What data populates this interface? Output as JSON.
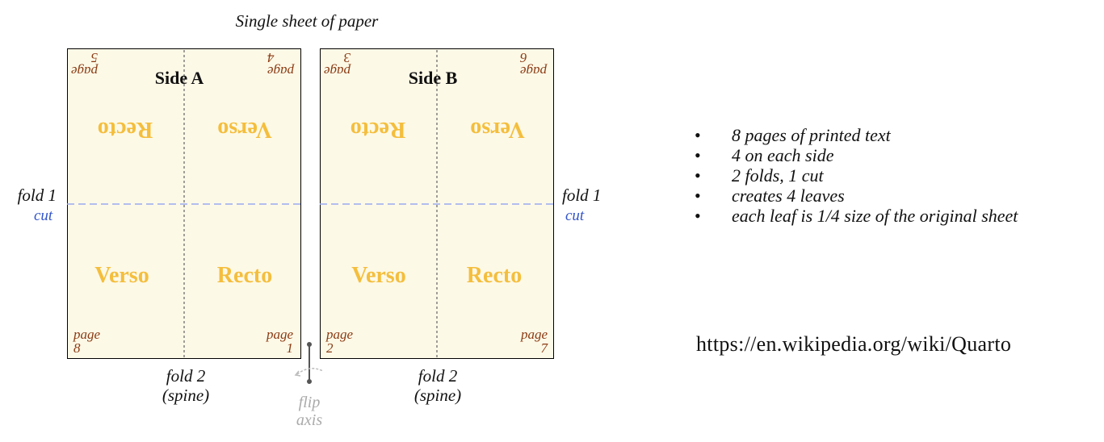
{
  "caption": "Single sheet of paper",
  "sides": [
    {
      "title": "Side A",
      "top_left": {
        "label": "page",
        "number": "5"
      },
      "top_right": {
        "label": "page",
        "number": "4"
      },
      "upper_left": "Recto",
      "upper_right": "Verso",
      "lower_left": "Verso",
      "lower_right": "Recto",
      "bottom_left": {
        "label": "page",
        "number": "8"
      },
      "bottom_right": {
        "label": "page",
        "number": "1"
      },
      "fold_label": "fold 1",
      "cut_label": "cut",
      "spine_label": [
        "fold 2",
        "(spine)"
      ]
    },
    {
      "title": "Side B",
      "top_left": {
        "label": "page",
        "number": "3"
      },
      "top_right": {
        "label": "page",
        "number": "6"
      },
      "upper_left": "Recto",
      "upper_right": "Verso",
      "lower_left": "Verso",
      "lower_right": "Recto",
      "bottom_left": {
        "label": "page",
        "number": "2"
      },
      "bottom_right": {
        "label": "page",
        "number": "7"
      },
      "fold_label": "fold 1",
      "cut_label": "cut",
      "spine_label": [
        "fold 2",
        "(spine)"
      ]
    }
  ],
  "flip_axis": [
    "flip",
    "axis"
  ],
  "facts": [
    "8 pages of printed text",
    "4 on each side",
    "2 folds, 1 cut",
    "creates 4 leaves",
    "each leaf is 1/4 size of the original sheet"
  ],
  "url": "https://en.wikipedia.org/wiki/Quarto",
  "colors": {
    "sheet": "#fdf9e7",
    "recto_verso": "#f4be3d",
    "page_label": "#8a3a12",
    "cut": "#3355cc",
    "cut_line": "#9aaaf0",
    "flip_axis": "#aaaaaa"
  }
}
